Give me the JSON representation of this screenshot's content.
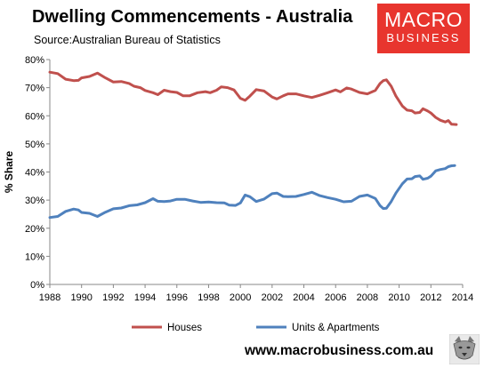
{
  "header": {
    "title": "Dwelling Commencements - Australia",
    "source": "Source:Australian Bureau of Statistics"
  },
  "logo": {
    "line1": "MACRO",
    "line2": "BUSINESS"
  },
  "footer": {
    "website": "www.macrobusiness.com.au",
    "mascot_icon": "wolf-icon"
  },
  "colors": {
    "houses": "#c0504d",
    "units": "#4f81bd"
  },
  "chart_data": {
    "type": "line",
    "title": "Dwelling Commencements - Australia",
    "ylabel": "% Share",
    "xlabel": "",
    "xlim": [
      1988,
      2014
    ],
    "ylim": [
      0,
      80
    ],
    "x_ticks": [
      1988,
      1990,
      1992,
      1994,
      1996,
      1998,
      2000,
      2002,
      2004,
      2006,
      2008,
      2010,
      2012,
      2014
    ],
    "y_ticks": [
      "0%",
      "10%",
      "20%",
      "30%",
      "40%",
      "50%",
      "60%",
      "70%",
      "80%"
    ],
    "grid": false,
    "legend_position": "bottom",
    "series": [
      {
        "name": "Houses",
        "points": [
          [
            1988.0,
            75.5
          ],
          [
            1988.5,
            75
          ],
          [
            1989.0,
            73
          ],
          [
            1989.5,
            72.5
          ],
          [
            1989.8,
            72.6
          ],
          [
            1990.0,
            73.5
          ],
          [
            1990.5,
            74
          ],
          [
            1991.0,
            75.2
          ],
          [
            1991.5,
            73.5
          ],
          [
            1992.0,
            72
          ],
          [
            1992.5,
            72.2
          ],
          [
            1993.0,
            71.5
          ],
          [
            1993.3,
            70.5
          ],
          [
            1993.7,
            70
          ],
          [
            1994.0,
            69
          ],
          [
            1994.5,
            68.2
          ],
          [
            1994.8,
            67.5
          ],
          [
            1995.2,
            69.1
          ],
          [
            1995.6,
            68.6
          ],
          [
            1996.0,
            68.3
          ],
          [
            1996.4,
            67.1
          ],
          [
            1996.8,
            67.1
          ],
          [
            1997.3,
            68.2
          ],
          [
            1997.8,
            68.6
          ],
          [
            1998.1,
            68.2
          ],
          [
            1998.5,
            69.1
          ],
          [
            1998.8,
            70.3
          ],
          [
            1999.2,
            70
          ],
          [
            1999.6,
            69.2
          ],
          [
            2000.0,
            66.2
          ],
          [
            2000.3,
            65.5
          ],
          [
            2000.6,
            67
          ],
          [
            2001.0,
            69.3
          ],
          [
            2001.5,
            68.8
          ],
          [
            2002.0,
            66.7
          ],
          [
            2002.3,
            66
          ],
          [
            2002.7,
            67.1
          ],
          [
            2003.0,
            67.8
          ],
          [
            2003.5,
            67.8
          ],
          [
            2004.0,
            67.1
          ],
          [
            2004.5,
            66.5
          ],
          [
            2005.0,
            67.3
          ],
          [
            2005.5,
            68.2
          ],
          [
            2006.0,
            69.2
          ],
          [
            2006.3,
            68.5
          ],
          [
            2006.7,
            69.9
          ],
          [
            2007.0,
            69.5
          ],
          [
            2007.5,
            68.3
          ],
          [
            2008.0,
            67.8
          ],
          [
            2008.5,
            69
          ],
          [
            2008.8,
            71.5
          ],
          [
            2009.0,
            72.5
          ],
          [
            2009.2,
            72.8
          ],
          [
            2009.5,
            70.5
          ],
          [
            2009.8,
            67
          ],
          [
            2010.2,
            63.5
          ],
          [
            2010.5,
            62
          ],
          [
            2010.8,
            61.8
          ],
          [
            2011.0,
            61
          ],
          [
            2011.3,
            61.2
          ],
          [
            2011.5,
            62.5
          ],
          [
            2011.8,
            61.7
          ],
          [
            2012.0,
            61
          ],
          [
            2012.3,
            59.4
          ],
          [
            2012.6,
            58.4
          ],
          [
            2012.9,
            57.8
          ],
          [
            2013.1,
            58.3
          ],
          [
            2013.3,
            57
          ],
          [
            2013.6,
            56.9
          ]
        ]
      },
      {
        "name": "Units & Apartments",
        "points": [
          [
            1988.0,
            23.8
          ],
          [
            1988.5,
            24.2
          ],
          [
            1989.0,
            26
          ],
          [
            1989.5,
            26.8
          ],
          [
            1989.8,
            26.5
          ],
          [
            1990.0,
            25.6
          ],
          [
            1990.5,
            25.3
          ],
          [
            1991.0,
            24.2
          ],
          [
            1991.5,
            25.7
          ],
          [
            1992.0,
            26.9
          ],
          [
            1992.5,
            27.2
          ],
          [
            1993.0,
            28
          ],
          [
            1993.5,
            28.3
          ],
          [
            1994.0,
            29.1
          ],
          [
            1994.5,
            30.5
          ],
          [
            1994.8,
            29.6
          ],
          [
            1995.2,
            29.5
          ],
          [
            1995.6,
            29.7
          ],
          [
            1996.0,
            30.3
          ],
          [
            1996.5,
            30.3
          ],
          [
            1997.0,
            29.7
          ],
          [
            1997.5,
            29.2
          ],
          [
            1998.0,
            29.3
          ],
          [
            1998.5,
            29.1
          ],
          [
            1999.0,
            29
          ],
          [
            1999.3,
            28.2
          ],
          [
            1999.7,
            28.1
          ],
          [
            2000.0,
            29
          ],
          [
            2000.3,
            31.8
          ],
          [
            2000.6,
            31.2
          ],
          [
            2001.0,
            29.5
          ],
          [
            2001.5,
            30.4
          ],
          [
            2002.0,
            32.3
          ],
          [
            2002.3,
            32.5
          ],
          [
            2002.7,
            31.3
          ],
          [
            2003.0,
            31.2
          ],
          [
            2003.5,
            31.3
          ],
          [
            2004.0,
            32
          ],
          [
            2004.5,
            32.8
          ],
          [
            2005.0,
            31.6
          ],
          [
            2005.5,
            30.9
          ],
          [
            2006.0,
            30.3
          ],
          [
            2006.5,
            29.4
          ],
          [
            2007.0,
            29.6
          ],
          [
            2007.5,
            31.3
          ],
          [
            2008.0,
            31.8
          ],
          [
            2008.5,
            30.6
          ],
          [
            2008.8,
            28
          ],
          [
            2009.0,
            27
          ],
          [
            2009.2,
            27.1
          ],
          [
            2009.5,
            29.5
          ],
          [
            2009.8,
            32.5
          ],
          [
            2010.2,
            35.8
          ],
          [
            2010.5,
            37.5
          ],
          [
            2010.8,
            37.6
          ],
          [
            2011.0,
            38.4
          ],
          [
            2011.3,
            38.6
          ],
          [
            2011.5,
            37.4
          ],
          [
            2011.8,
            37.8
          ],
          [
            2012.0,
            38.5
          ],
          [
            2012.3,
            40.4
          ],
          [
            2012.6,
            40.9
          ],
          [
            2012.9,
            41.2
          ],
          [
            2013.1,
            41.9
          ],
          [
            2013.3,
            42.2
          ],
          [
            2013.5,
            42.3
          ]
        ]
      }
    ]
  }
}
